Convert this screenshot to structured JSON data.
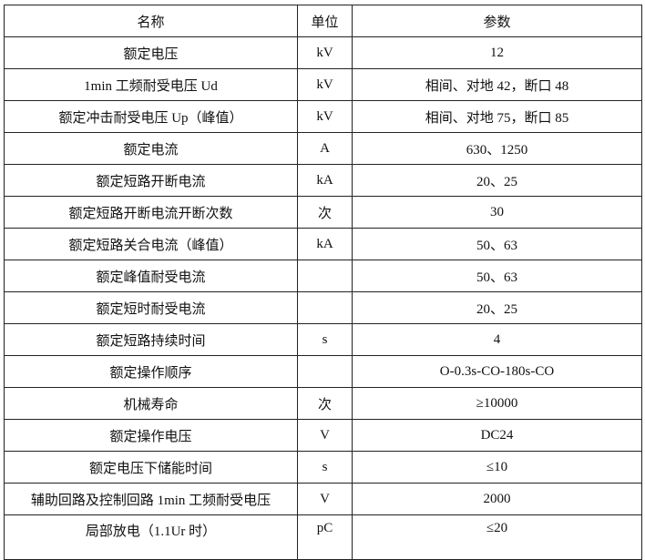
{
  "headers": {
    "name": "名称",
    "unit": "单位",
    "value": "参数"
  },
  "rows": [
    {
      "name": "额定电压",
      "unit": "kV",
      "value": "12"
    },
    {
      "name": "1min 工频耐受电压 Ud",
      "unit": "kV",
      "value": "相间、对地 42，断口 48"
    },
    {
      "name": "额定冲击耐受电压 Up（峰值）",
      "unit": "kV",
      "value": "相间、对地 75，断口 85"
    },
    {
      "name": "额定电流",
      "unit": "A",
      "value": "630、1250"
    },
    {
      "name": "额定短路开断电流",
      "unit": "kA",
      "value": "20、25"
    },
    {
      "name": "额定短路开断电流开断次数",
      "unit": "次",
      "value": "30"
    },
    {
      "name": "额定短路关合电流（峰值）",
      "unit": "kA",
      "value": "50、63"
    },
    {
      "name": "额定峰值耐受电流",
      "unit": "",
      "value": "50、63"
    },
    {
      "name": "额定短时耐受电流",
      "unit": "",
      "value": "20、25"
    },
    {
      "name": "额定短路持续时间",
      "unit": "s",
      "value": "4"
    },
    {
      "name": "额定操作顺序",
      "unit": "",
      "value": "O-0.3s-CO-180s-CO"
    },
    {
      "name": "机械寿命",
      "unit": "次",
      "value": "≥10000"
    },
    {
      "name": "额定操作电压",
      "unit": "V",
      "value": "DC24"
    },
    {
      "name": "额定电压下储能时间",
      "unit": "s",
      "value": "≤10"
    },
    {
      "name": "辅助回路及控制回路 1min 工频耐受电压",
      "unit": "V",
      "value": "2000"
    },
    {
      "name": "局部放电（1.1Ur 时）",
      "unit": "pC",
      "value": "≤20"
    }
  ]
}
